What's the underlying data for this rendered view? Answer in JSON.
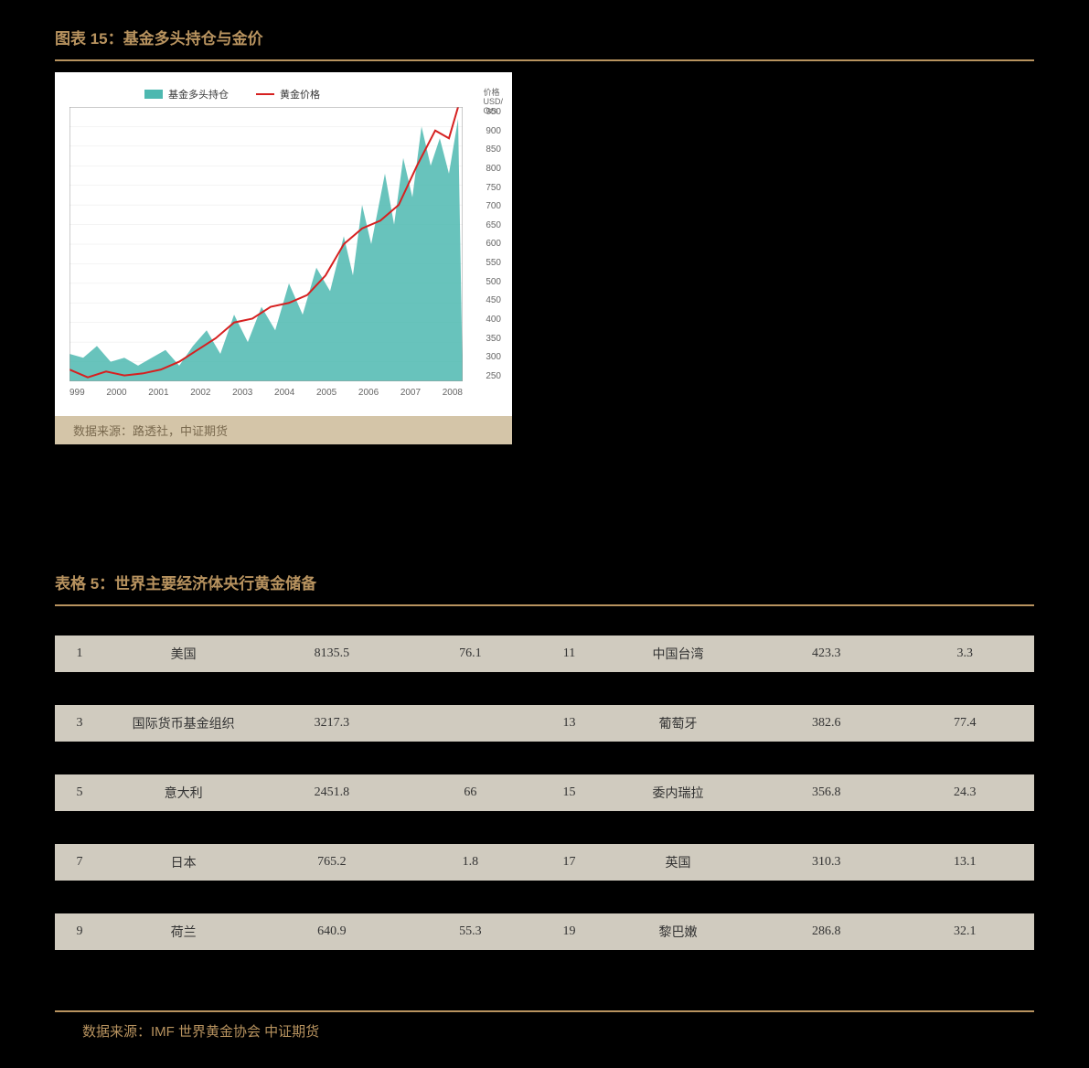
{
  "chart": {
    "title": "图表 15：基金多头持仓与金价",
    "legend_area": "基金多头持仓",
    "legend_line": "黄金价格",
    "area_color": "#4db8b0",
    "line_color": "#d62020",
    "background": "#ffffff",
    "grid_color": "#e8e8e8",
    "y_title_lines": [
      "价格",
      "USD/",
      "Ozs"
    ],
    "y_ticks": [
      "950",
      "900",
      "850",
      "800",
      "750",
      "700",
      "650",
      "600",
      "550",
      "500",
      "450",
      "400",
      "350",
      "300",
      "250"
    ],
    "y_range": [
      250,
      950
    ],
    "x_ticks": [
      "999",
      "2000",
      "2001",
      "2002",
      "2003",
      "2004",
      "2005",
      "2006",
      "2007",
      "2008"
    ],
    "area_points": [
      [
        0,
        320
      ],
      [
        15,
        310
      ],
      [
        30,
        340
      ],
      [
        45,
        300
      ],
      [
        60,
        310
      ],
      [
        75,
        290
      ],
      [
        90,
        310
      ],
      [
        105,
        330
      ],
      [
        120,
        290
      ],
      [
        135,
        340
      ],
      [
        150,
        380
      ],
      [
        165,
        320
      ],
      [
        180,
        420
      ],
      [
        195,
        350
      ],
      [
        210,
        440
      ],
      [
        225,
        380
      ],
      [
        240,
        500
      ],
      [
        255,
        420
      ],
      [
        270,
        540
      ],
      [
        285,
        480
      ],
      [
        300,
        620
      ],
      [
        310,
        520
      ],
      [
        320,
        700
      ],
      [
        330,
        600
      ],
      [
        345,
        780
      ],
      [
        355,
        650
      ],
      [
        365,
        820
      ],
      [
        375,
        720
      ],
      [
        385,
        900
      ],
      [
        395,
        800
      ],
      [
        405,
        870
      ],
      [
        415,
        780
      ],
      [
        425,
        920
      ]
    ],
    "line_points": [
      [
        0,
        280
      ],
      [
        20,
        260
      ],
      [
        40,
        275
      ],
      [
        60,
        265
      ],
      [
        80,
        270
      ],
      [
        100,
        280
      ],
      [
        120,
        300
      ],
      [
        140,
        330
      ],
      [
        160,
        360
      ],
      [
        180,
        400
      ],
      [
        200,
        410
      ],
      [
        220,
        440
      ],
      [
        240,
        450
      ],
      [
        260,
        470
      ],
      [
        280,
        520
      ],
      [
        300,
        600
      ],
      [
        320,
        640
      ],
      [
        340,
        660
      ],
      [
        360,
        700
      ],
      [
        380,
        800
      ],
      [
        400,
        890
      ],
      [
        415,
        870
      ],
      [
        425,
        950
      ]
    ],
    "source": "数据来源：路透社，中证期货"
  },
  "table": {
    "title": "表格 5：世界主要经济体央行黄金储备",
    "rows": [
      {
        "shaded": true,
        "a": "1",
        "b": "美国",
        "c": "8135.5",
        "d": "76.1",
        "e": "11",
        "f": "中国台湾",
        "g": "423.3",
        "h": "3.3"
      },
      {
        "shaded": false,
        "a": "",
        "b": "",
        "c": "",
        "d": "",
        "e": "",
        "f": "",
        "g": "",
        "h": ""
      },
      {
        "shaded": true,
        "a": "3",
        "b": "国际货币基金组织",
        "c": "3217.3",
        "d": "",
        "e": "13",
        "f": "葡萄牙",
        "g": "382.6",
        "h": "77.4"
      },
      {
        "shaded": false,
        "a": "",
        "b": "",
        "c": "",
        "d": "",
        "e": "",
        "f": "",
        "g": "",
        "h": ""
      },
      {
        "shaded": true,
        "a": "5",
        "b": "意大利",
        "c": "2451.8",
        "d": "66",
        "e": "15",
        "f": "委内瑞拉",
        "g": "356.8",
        "h": "24.3"
      },
      {
        "shaded": false,
        "a": "",
        "b": "",
        "c": "",
        "d": "",
        "e": "",
        "f": "",
        "g": "",
        "h": ""
      },
      {
        "shaded": true,
        "a": "7",
        "b": "日本",
        "c": "765.2",
        "d": "1.8",
        "e": "17",
        "f": "英国",
        "g": "310.3",
        "h": "13.1"
      },
      {
        "shaded": false,
        "a": "",
        "b": "",
        "c": "",
        "d": "",
        "e": "",
        "f": "",
        "g": "",
        "h": ""
      },
      {
        "shaded": true,
        "a": "9",
        "b": "荷兰",
        "c": "640.9",
        "d": "55.3",
        "e": "19",
        "f": "黎巴嫩",
        "g": "286.8",
        "h": "32.1"
      },
      {
        "shaded": false,
        "a": "",
        "b": "",
        "c": "",
        "d": "",
        "e": "",
        "f": "",
        "g": "",
        "h": ""
      }
    ],
    "source": "数据来源：IMF 世界黄金协会 中证期货"
  },
  "colors": {
    "accent": "#b8935f",
    "row_shade": "#d0cbbf",
    "page_bg": "#000000"
  }
}
